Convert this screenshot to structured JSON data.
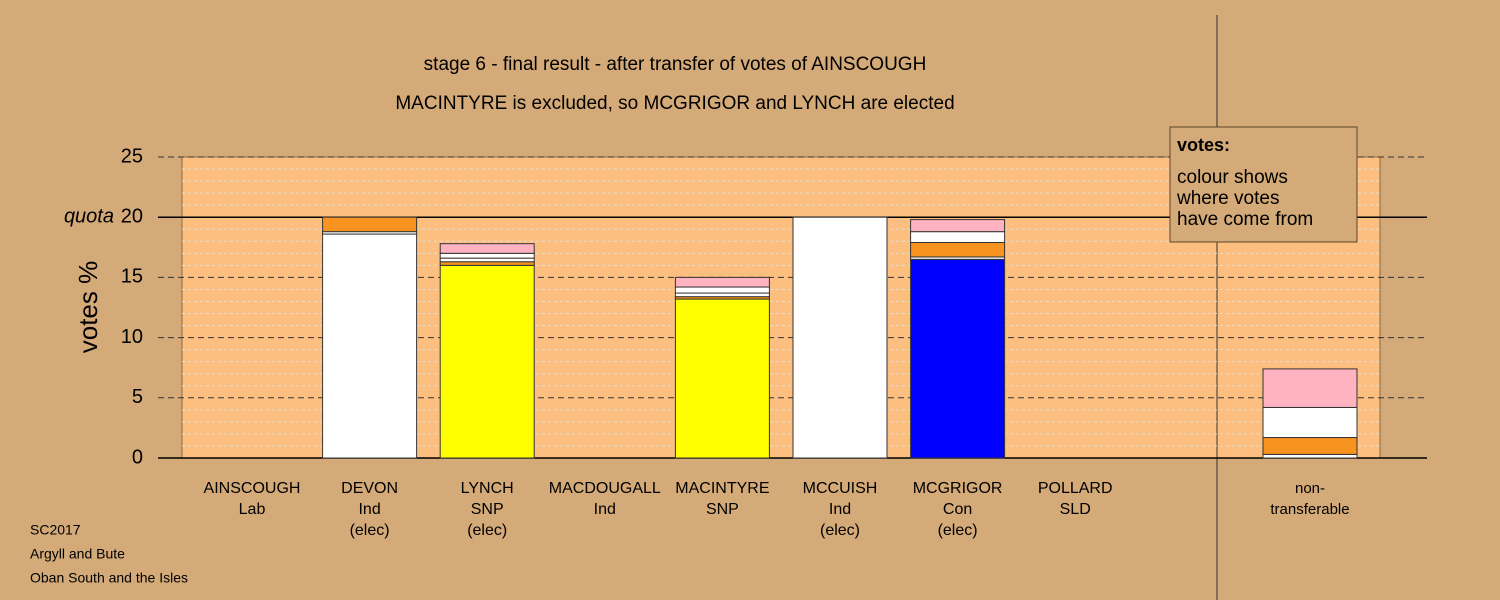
{
  "chart_data": {
    "type": "stacked-bar",
    "title": "stage 6 - final result - after transfer of votes of AINSCOUGH",
    "subtitle": "MACINTYRE is excluded, so MCGRIGOR and LYNCH are elected",
    "y_label": "votes %",
    "ylim": [
      0,
      25
    ],
    "yticks": [
      0,
      5,
      10,
      15,
      20,
      25
    ],
    "minor_yticks": [
      1,
      2,
      3,
      4,
      6,
      7,
      8,
      9,
      11,
      12,
      13,
      14,
      16,
      17,
      18,
      19,
      21,
      22,
      23,
      24
    ],
    "grid": true,
    "quota": {
      "label": "quota",
      "value": 20
    },
    "categories": [
      [
        "AINSCOUGH",
        "Lab"
      ],
      [
        "DEVON",
        "Ind",
        "(elec)"
      ],
      [
        "LYNCH",
        "SNP",
        "(elec)"
      ],
      [
        "MACDOUGALL",
        "Ind"
      ],
      [
        "MACINTYRE",
        "SNP"
      ],
      [
        "MCCUISH",
        "Ind",
        "(elec)"
      ],
      [
        "MCGRIGOR",
        "Con",
        "(elec)"
      ],
      [
        "POLLARD",
        "SLD"
      ],
      [
        "non-",
        "transferable"
      ]
    ],
    "stacks": [
      [],
      [
        {
          "value": 18.6,
          "color": "#ffffff"
        },
        {
          "value": 0.2,
          "color": "#ffffff"
        },
        {
          "value": 1.2,
          "color": "#f7931e"
        }
      ],
      [
        {
          "value": 16.0,
          "color": "#ffff00"
        },
        {
          "value": 0.3,
          "color": "#f7931e"
        },
        {
          "value": 0.3,
          "color": "#ffffff"
        },
        {
          "value": 0.4,
          "color": "#ffffff"
        },
        {
          "value": 0.8,
          "color": "#ffb3c1"
        }
      ],
      [],
      [
        {
          "value": 13.2,
          "color": "#ffff00"
        },
        {
          "value": 0.2,
          "color": "#f7931e"
        },
        {
          "value": 0.3,
          "color": "#ffffff"
        },
        {
          "value": 0.5,
          "color": "#ffffff"
        },
        {
          "value": 0.8,
          "color": "#ffb3c1"
        }
      ],
      [
        {
          "value": 20.0,
          "color": "#ffffff"
        }
      ],
      [
        {
          "value": 16.5,
          "color": "#0000ff"
        },
        {
          "value": 0.2,
          "color": "#ffffff"
        },
        {
          "value": 1.2,
          "color": "#f7931e"
        },
        {
          "value": 0.9,
          "color": "#ffffff"
        },
        {
          "value": 1.0,
          "color": "#ffb3c1"
        }
      ],
      [],
      [
        {
          "value": 0.3,
          "color": "#ffffff"
        },
        {
          "value": 1.4,
          "color": "#f7931e"
        },
        {
          "value": 2.5,
          "color": "#ffffff"
        },
        {
          "value": 3.2,
          "color": "#ffb3c1"
        }
      ]
    ],
    "legend_box": {
      "title": "votes:",
      "lines": [
        "colour shows",
        "where votes",
        "have come from"
      ]
    },
    "footer": [
      "SC2017",
      "Argyll and Bute",
      "Oban South and the Isles"
    ]
  }
}
